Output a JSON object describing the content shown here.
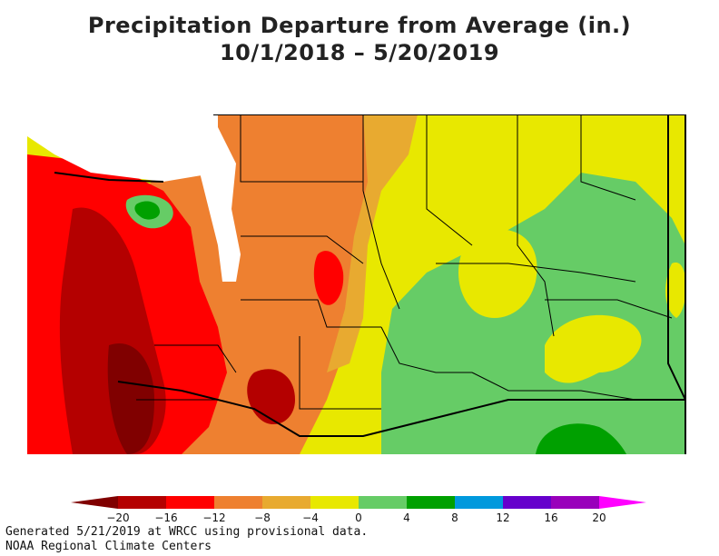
{
  "title": {
    "line1": "Precipitation Departure from Average (in.)",
    "line2": "10/1/2018 – 5/20/2019"
  },
  "legend": {
    "ticks": [
      "−20",
      "−16",
      "−12",
      "−8",
      "−4",
      "0",
      "4",
      "8",
      "12",
      "16",
      "20"
    ],
    "bins": [
      {
        "color": "#b40000"
      },
      {
        "color": "#ff0000"
      },
      {
        "color": "#ee8030"
      },
      {
        "color": "#e8aa30"
      },
      {
        "color": "#e8e800"
      },
      {
        "color": "#66cc66"
      },
      {
        "color": "#00a000"
      },
      {
        "color": "#0099dd"
      },
      {
        "color": "#6600cc"
      },
      {
        "color": "#9900bb"
      }
    ],
    "low_color": "#800000",
    "high_color": "#ff00ff"
  },
  "colors": {
    "water": "#ffffff",
    "boundary": "#000000",
    "state_border": "#000000"
  },
  "footer": {
    "line1": "Generated 5/21/2019 at WRCC using provisional data.",
    "line2": "NOAA Regional Climate Centers"
  }
}
